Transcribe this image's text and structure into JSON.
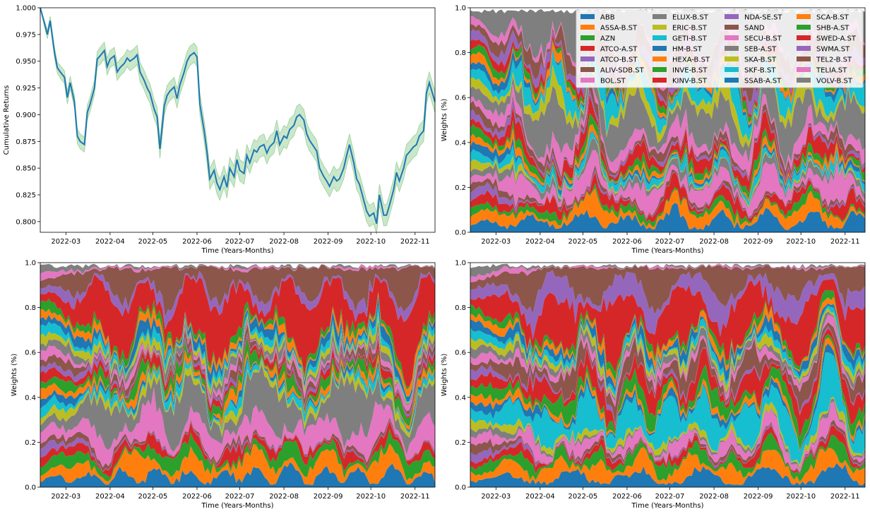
{
  "chart_data": [
    {
      "type": "line",
      "xlabel": "Time (Years-Months)",
      "ylabel": "Cumulative Returns",
      "x_ticks": [
        "2022-03",
        "2022-04",
        "2022-05",
        "2022-06",
        "2022-07",
        "2022-08",
        "2022-09",
        "2022-10",
        "2022-11"
      ],
      "x_range": [
        "2022-02-11",
        "2022-11-15"
      ],
      "ylim": [
        0.79,
        1.0
      ],
      "y_ticks": [
        0.8,
        0.825,
        0.85,
        0.875,
        0.9,
        0.925,
        0.95,
        0.975,
        1.0
      ],
      "y_tick_labels": [
        "0.800",
        "0.825",
        "0.850",
        "0.875",
        "0.900",
        "0.925",
        "0.950",
        "0.975",
        "1.000"
      ],
      "line_color": "#1f77b4",
      "band_color": "#2ca02c",
      "series": [
        {
          "x": [
            "2022-02-11",
            "2022-02-14",
            "2022-02-16",
            "2022-02-18",
            "2022-02-21",
            "2022-02-23",
            "2022-02-25",
            "2022-02-28",
            "2022-03-02",
            "2022-03-04",
            "2022-03-07",
            "2022-03-09",
            "2022-03-11",
            "2022-03-14",
            "2022-03-16",
            "2022-03-18",
            "2022-03-21",
            "2022-03-23",
            "2022-03-25",
            "2022-03-28",
            "2022-03-30",
            "2022-04-01",
            "2022-04-04",
            "2022-04-06",
            "2022-04-08",
            "2022-04-11",
            "2022-04-13",
            "2022-04-15",
            "2022-04-18",
            "2022-04-20",
            "2022-04-22",
            "2022-04-25",
            "2022-04-27",
            "2022-04-29",
            "2022-05-02",
            "2022-05-04",
            "2022-05-06",
            "2022-05-09",
            "2022-05-11",
            "2022-05-13",
            "2022-05-16",
            "2022-05-18",
            "2022-05-20",
            "2022-05-23",
            "2022-05-25",
            "2022-05-27",
            "2022-05-30",
            "2022-06-01",
            "2022-06-03",
            "2022-06-06",
            "2022-06-08",
            "2022-06-10",
            "2022-06-13",
            "2022-06-15",
            "2022-06-17",
            "2022-06-20",
            "2022-06-22",
            "2022-06-24",
            "2022-06-27",
            "2022-06-29",
            "2022-07-01",
            "2022-07-04",
            "2022-07-06",
            "2022-07-08",
            "2022-07-11",
            "2022-07-13",
            "2022-07-15",
            "2022-07-18",
            "2022-07-20",
            "2022-07-22",
            "2022-07-25",
            "2022-07-27",
            "2022-07-29",
            "2022-08-01",
            "2022-08-03",
            "2022-08-05",
            "2022-08-08",
            "2022-08-10",
            "2022-08-12",
            "2022-08-15",
            "2022-08-17",
            "2022-08-19",
            "2022-08-22",
            "2022-08-24",
            "2022-08-26",
            "2022-08-29",
            "2022-08-31",
            "2022-09-02",
            "2022-09-05",
            "2022-09-07",
            "2022-09-09",
            "2022-09-12",
            "2022-09-14",
            "2022-09-16",
            "2022-09-19",
            "2022-09-21",
            "2022-09-23",
            "2022-09-26",
            "2022-09-28",
            "2022-09-30",
            "2022-10-03",
            "2022-10-05",
            "2022-10-07",
            "2022-10-10",
            "2022-10-12",
            "2022-10-14",
            "2022-10-17",
            "2022-10-19",
            "2022-10-21",
            "2022-10-24",
            "2022-10-26",
            "2022-10-28",
            "2022-10-31",
            "2022-11-02",
            "2022-11-04",
            "2022-11-07",
            "2022-11-09",
            "2022-11-11",
            "2022-11-15"
          ],
          "y": [
            1.0,
            0.985,
            0.975,
            0.988,
            0.958,
            0.944,
            0.94,
            0.935,
            0.916,
            0.93,
            0.912,
            0.88,
            0.875,
            0.872,
            0.902,
            0.91,
            0.925,
            0.952,
            0.955,
            0.96,
            0.945,
            0.952,
            0.955,
            0.94,
            0.944,
            0.948,
            0.953,
            0.95,
            0.953,
            0.956,
            0.94,
            0.932,
            0.925,
            0.92,
            0.905,
            0.898,
            0.868,
            0.908,
            0.918,
            0.922,
            0.926,
            0.915,
            0.928,
            0.94,
            0.95,
            0.955,
            0.958,
            0.954,
            0.91,
            0.885,
            0.865,
            0.84,
            0.848,
            0.836,
            0.83,
            0.842,
            0.832,
            0.85,
            0.842,
            0.858,
            0.848,
            0.845,
            0.862,
            0.855,
            0.867,
            0.865,
            0.87,
            0.872,
            0.864,
            0.87,
            0.874,
            0.885,
            0.872,
            0.88,
            0.878,
            0.886,
            0.89,
            0.898,
            0.9,
            0.895,
            0.882,
            0.876,
            0.87,
            0.866,
            0.85,
            0.842,
            0.838,
            0.833,
            0.842,
            0.838,
            0.84,
            0.85,
            0.862,
            0.872,
            0.855,
            0.84,
            0.835,
            0.82,
            0.81,
            0.805,
            0.808,
            0.798,
            0.825,
            0.806,
            0.806,
            0.815,
            0.83,
            0.846,
            0.838,
            0.85,
            0.862,
            0.865,
            0.87,
            0.872,
            0.88,
            0.885,
            0.92,
            0.93,
            0.912
          ],
          "band": [
            0.0,
            0.003,
            0.004,
            0.004,
            0.005,
            0.005,
            0.006,
            0.006,
            0.006,
            0.006,
            0.006,
            0.007,
            0.007,
            0.007,
            0.007,
            0.007,
            0.007,
            0.007,
            0.008,
            0.008,
            0.008,
            0.008,
            0.008,
            0.008,
            0.008,
            0.008,
            0.008,
            0.009,
            0.009,
            0.009,
            0.009,
            0.009,
            0.009,
            0.009,
            0.009,
            0.009,
            0.009,
            0.009,
            0.009,
            0.009,
            0.009,
            0.009,
            0.009,
            0.009,
            0.009,
            0.009,
            0.009,
            0.009,
            0.01,
            0.01,
            0.01,
            0.01,
            0.01,
            0.01,
            0.01,
            0.01,
            0.01,
            0.01,
            0.01,
            0.01,
            0.01,
            0.01,
            0.01,
            0.01,
            0.01,
            0.01,
            0.01,
            0.01,
            0.01,
            0.01,
            0.01,
            0.01,
            0.01,
            0.01,
            0.01,
            0.01,
            0.01,
            0.01,
            0.01,
            0.01,
            0.01,
            0.01,
            0.01,
            0.01,
            0.01,
            0.01,
            0.01,
            0.01,
            0.01,
            0.01,
            0.01,
            0.01,
            0.01,
            0.01,
            0.01,
            0.01,
            0.01,
            0.01,
            0.01,
            0.01,
            0.01,
            0.01,
            0.01,
            0.01,
            0.01,
            0.01,
            0.01,
            0.01,
            0.01,
            0.01,
            0.01,
            0.01,
            0.01,
            0.01,
            0.01,
            0.01,
            0.01,
            0.01,
            0.01
          ]
        }
      ]
    },
    {
      "type": "area",
      "stacked": true,
      "xlabel": "Time (Years-Months)",
      "ylabel": "Weights (%)",
      "ylim": [
        0.0,
        1.0
      ],
      "y_tick_labels": [
        "0.0",
        "0.2",
        "0.4",
        "0.6",
        "0.8",
        "1.0"
      ],
      "legend": true,
      "legend_location": "upper right",
      "legend_columns": 4,
      "variant": "mixed"
    },
    {
      "type": "area",
      "stacked": true,
      "xlabel": "Time (Years-Months)",
      "ylabel": "Weights (%)",
      "ylim": [
        0.0,
        1.0
      ],
      "y_tick_labels": [
        "0.0",
        "0.2",
        "0.4",
        "0.6",
        "0.8",
        "1.0"
      ],
      "legend": false,
      "variant": "gray-heavy"
    },
    {
      "type": "area",
      "stacked": true,
      "xlabel": "Time (Years-Months)",
      "ylabel": "Weights (%)",
      "ylim": [
        0.0,
        1.0
      ],
      "y_tick_labels": [
        "0.0",
        "0.2",
        "0.4",
        "0.6",
        "0.8",
        "1.0"
      ],
      "legend": false,
      "variant": "cyan-heavy"
    }
  ],
  "tickers": [
    "ABB",
    "ASSA-B.ST",
    "AZN",
    "ATCO-A.ST",
    "ATCO-B.ST",
    "ALIV-SDB.ST",
    "BOL.ST",
    "ELUX-B.ST",
    "ERIC-B.ST",
    "GETI-B.ST",
    "HM-B.ST",
    "HEXA-B.ST",
    "INVE-B.ST",
    "KINV-B.ST",
    "NDA-SE.ST",
    "SAND",
    "SECU-B.ST",
    "SEB-A.ST",
    "SKA-B.ST",
    "SKF-B.ST",
    "SSAB-A.ST",
    "SCA-B.ST",
    "SHB-A.ST",
    "SWED-A.ST",
    "SWMA.ST",
    "TEL2-B.ST",
    "TELIA.ST",
    "VOLV-B.ST"
  ],
  "palette": [
    "#1f77b4",
    "#ff7f0e",
    "#2ca02c",
    "#d62728",
    "#9467bd",
    "#8c564b",
    "#e377c2",
    "#7f7f7f",
    "#bcbd22",
    "#17becf"
  ],
  "weights_profile": {
    "mixed": [
      0.05,
      0.04,
      0.02,
      0.03,
      0.005,
      0.01,
      0.06,
      0.02,
      0.005,
      0.02,
      0.01,
      0.015,
      0.02,
      0.04,
      0.01,
      0.02,
      0.04,
      0.12,
      0.04,
      0.06,
      0.015,
      0.02,
      0.02,
      0.02,
      0.03,
      0.05,
      0.02,
      0.16
    ],
    "gray-heavy": [
      0.05,
      0.06,
      0.04,
      0.03,
      0.005,
      0.01,
      0.08,
      0.12,
      0.02,
      0.02,
      0.01,
      0.02,
      0.03,
      0.02,
      0.01,
      0.02,
      0.015,
      0.02,
      0.02,
      0.02,
      0.03,
      0.02,
      0.02,
      0.16,
      0.03,
      0.1,
      0.005,
      0.005
    ],
    "cyan-heavy": [
      0.05,
      0.06,
      0.04,
      0.02,
      0.005,
      0.01,
      0.04,
      0.01,
      0.02,
      0.12,
      0.02,
      0.02,
      0.05,
      0.06,
      0.01,
      0.06,
      0.02,
      0.02,
      0.02,
      0.02,
      0.03,
      0.02,
      0.02,
      0.16,
      0.08,
      0.1,
      0.005,
      0.005
    ]
  }
}
